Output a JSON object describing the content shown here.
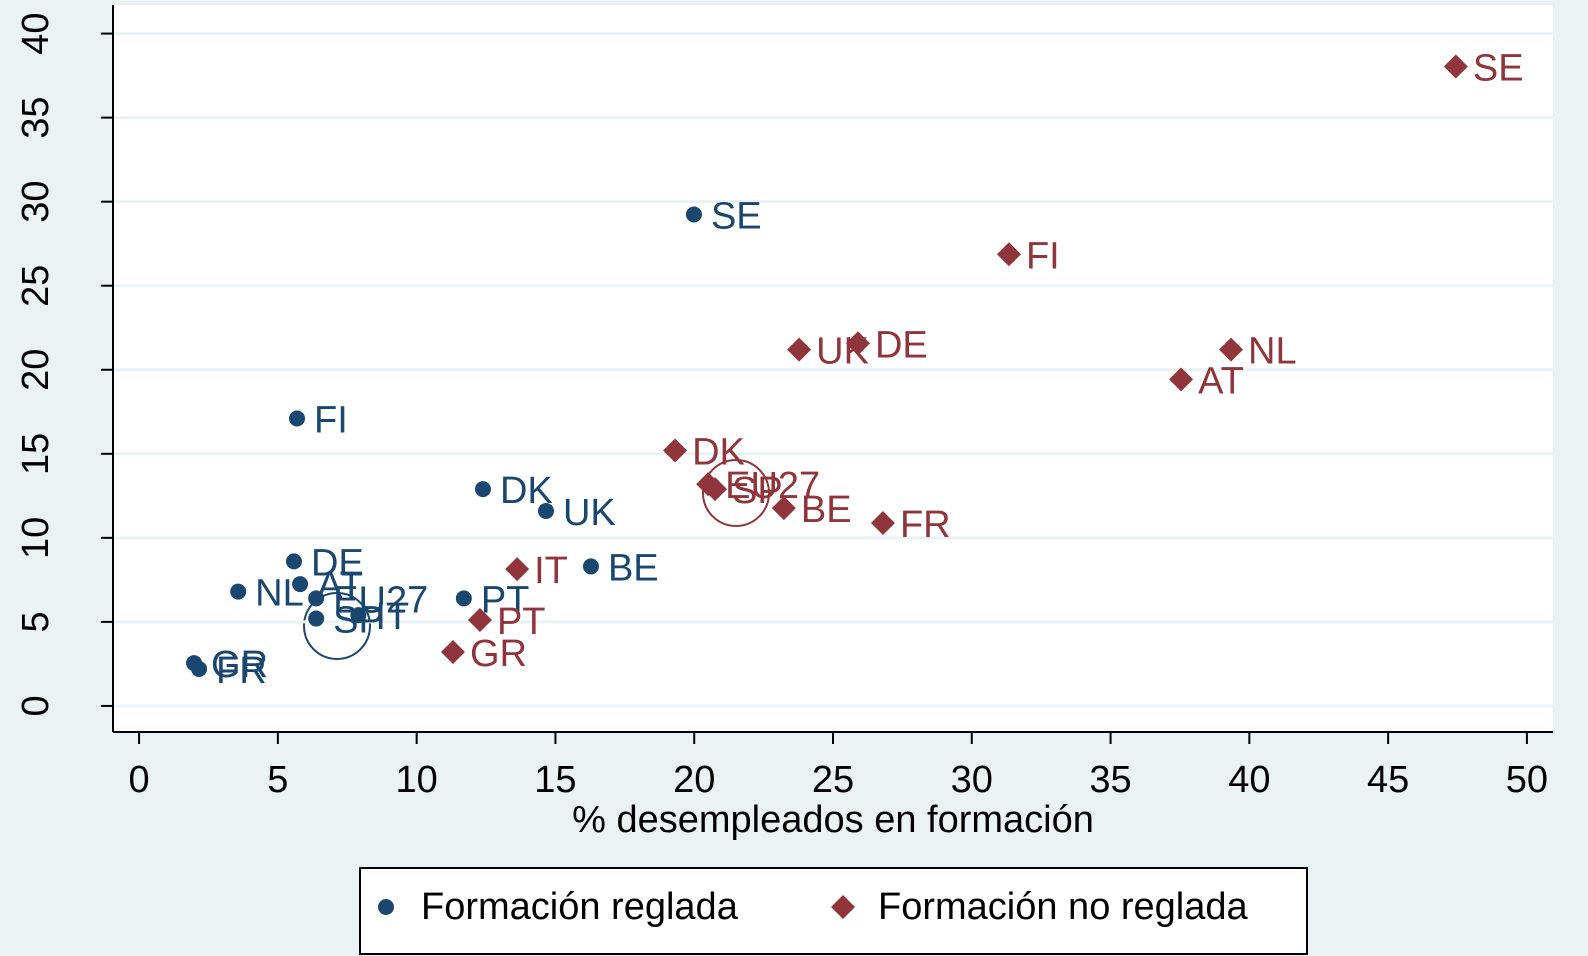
{
  "chart_data": {
    "type": "scatter",
    "x_label": "% desempleados en formación",
    "xlim": [
      -0.94,
      50.94
    ],
    "xticks": [
      0,
      5,
      10,
      15,
      20,
      25,
      30,
      35,
      40,
      45,
      50
    ],
    "ylim": [
      -1.55,
      41.7
    ],
    "yticks": [
      0,
      5,
      10,
      15,
      20,
      25,
      30,
      35,
      40
    ],
    "grid": true,
    "series": [
      {
        "name": "Formación reglada",
        "color": "#1a476f",
        "marker": "circle",
        "labels": [
          "SE",
          "FI",
          "DK",
          "UK",
          "DE",
          "BE",
          "AT",
          "NL",
          "EU27",
          "PT",
          "SP",
          "IT",
          "GR",
          "FR"
        ],
        "x": [
          19.99,
          5.69,
          12.39,
          14.66,
          5.58,
          16.28,
          5.8,
          3.57,
          6.38,
          11.7,
          6.38,
          7.9,
          1.98,
          2.16
        ],
        "values": [
          29.24,
          17.1,
          12.9,
          11.6,
          8.6,
          8.3,
          7.25,
          6.8,
          6.4,
          6.4,
          5.2,
          5.4,
          2.55,
          2.2
        ]
      },
      {
        "name": "Formación no reglada",
        "color": "#90353b",
        "marker": "diamond",
        "labels": [
          "SE",
          "FI",
          "UK",
          "DE",
          "NL",
          "AT",
          "DK",
          "EU27",
          "SP",
          "BE",
          "FR",
          "IT",
          "PT",
          "GR"
        ],
        "x": [
          47.44,
          31.34,
          23.78,
          25.9,
          39.34,
          37.54,
          19.31,
          20.5,
          20.75,
          23.23,
          26.8,
          13.62,
          12.28,
          11.31
        ],
        "values": [
          38.04,
          26.87,
          21.2,
          21.57,
          21.2,
          19.43,
          15.2,
          13.2,
          12.9,
          11.77,
          10.88,
          8.14,
          5.11,
          3.21
        ]
      }
    ]
  }
}
